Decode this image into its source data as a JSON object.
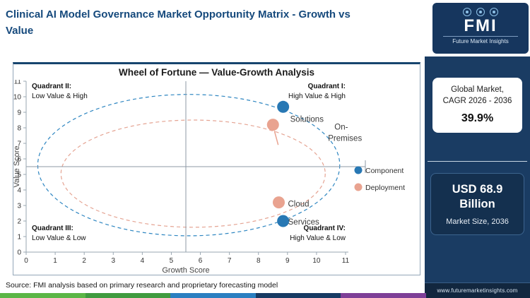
{
  "header": {
    "title_line1": "Clinical AI Model Governance Market  Opportunity Matrix - Growth vs",
    "title_line2": "Value"
  },
  "logo": {
    "abbr": "FMI",
    "name": "Future Market Insights"
  },
  "sidebar": {
    "card1": {
      "line1": "Global Market,",
      "line2": "CAGR 2026 - 2036",
      "value": "39.9%"
    },
    "card2": {
      "value_line1": "USD 68.9",
      "value_line2": "Billion",
      "caption": "Market Size, 2036"
    },
    "website": "www.futuremarketinsights.com"
  },
  "source_note": "Source: FMI analysis based on primary research and proprietary forecasting model",
  "brand_colors": {
    "navy": "#16365e",
    "title_blue": "#15497c",
    "sidebar_bg": "#1a3c63"
  },
  "chart_data": {
    "type": "scatter",
    "title": "Wheel of Fortune — Value-Growth Analysis",
    "xlabel": "Growth Score",
    "ylabel": "Value Score",
    "xlim": [
      0,
      11
    ],
    "ylim": [
      0,
      11
    ],
    "xticks": [
      0,
      1,
      2,
      3,
      4,
      5,
      6,
      7,
      8,
      9,
      10,
      11
    ],
    "yticks": [
      0,
      1,
      2,
      3,
      4,
      5,
      6,
      7,
      8,
      9,
      10,
      11
    ],
    "grid": false,
    "crosshair": {
      "x": 5.5,
      "y": 5.5
    },
    "quadrants": [
      {
        "name": "Quadrant II:",
        "desc": "Low Value & High",
        "position": "top-left"
      },
      {
        "name": "Quadrant I:",
        "desc": "High Value & High",
        "position": "top-right"
      },
      {
        "name": "Quadrant III:",
        "desc": "Low Value & Low",
        "position": "bottom-left"
      },
      {
        "name": "Quadrant IV:",
        "desc": "High Value & Low",
        "position": "bottom-right"
      }
    ],
    "series": [
      {
        "name": "Component",
        "color": "#2878b4",
        "points": [
          {
            "label": "Solutions",
            "x": 8.85,
            "y": 9.35,
            "label_dx": 10,
            "label_dy": 21
          },
          {
            "label": "Services",
            "x": 8.85,
            "y": 2.0,
            "label_dx": 7,
            "label_dy": 5
          }
        ]
      },
      {
        "name": "Deployment",
        "color": "#e9a390",
        "points": [
          {
            "label": "On-Premises",
            "x": 8.5,
            "y": 8.2,
            "label_lines": [
              {
                "text": "On-",
                "dx": 87,
                "dy": 7
              },
              {
                "text": "Premises",
                "dx": 78,
                "dy": 23
              }
            ]
          },
          {
            "label": "Cloud",
            "x": 8.7,
            "y": 3.2,
            "label_dx": 13,
            "label_dy": 6
          }
        ]
      }
    ],
    "ellipses": [
      {
        "cx": 5.6,
        "cy": 5.6,
        "rx": 5.2,
        "ry": 4.55,
        "color": "#2e86c1"
      },
      {
        "cx": 5.75,
        "cy": 5.05,
        "rx": 4.55,
        "ry": 3.45,
        "color": "#e5a493"
      }
    ],
    "leader_line": {
      "x1": 8.55,
      "y1": 7.8,
      "x2": 8.68,
      "y2": 6.9,
      "color": "#e9a390"
    },
    "legend": {
      "position": "right",
      "entries": [
        "Component",
        "Deployment"
      ]
    }
  },
  "footer_stripe_colors": [
    "#5bb646",
    "#3f9b3f",
    "#2a7fc1",
    "#173a63",
    "#7e3f97"
  ]
}
